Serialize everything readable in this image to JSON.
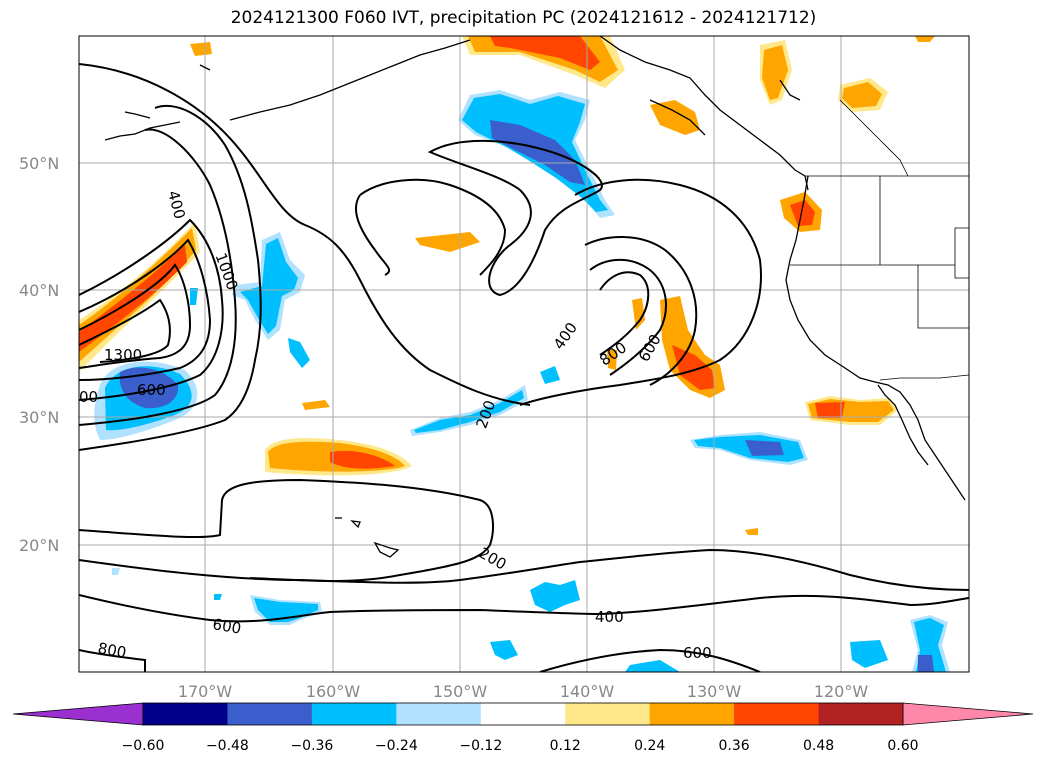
{
  "title": "2024121300 F060 IVT, precipitation PC (2024121612 - 2024121712)",
  "lat_labels": [
    "50°N",
    "40°N",
    "30°N",
    "20°N"
  ],
  "lon_labels": [
    "170°W",
    "160°W",
    "150°W",
    "140°W",
    "130°W",
    "120°W"
  ],
  "colorbar": {
    "colors": [
      "#9b30d0",
      "#00008b",
      "#3a5fcd",
      "#00bfff",
      "#b0e2ff",
      "#ffffff",
      "#ffe88a",
      "#ffa500",
      "#ff4500",
      "#b22222",
      "#ff88aa"
    ],
    "tick_labels": [
      "−0.60",
      "−0.48",
      "−0.36",
      "−0.24",
      "−0.12",
      "0.12",
      "0.24",
      "0.36",
      "0.48",
      "0.60"
    ]
  },
  "contour_labels": {
    "c400_nw": "400",
    "c1000": "1000",
    "c1300": "1300",
    "c600_w": "600",
    "c00_w": "00",
    "c400_mid": "400",
    "c800_mid": "800",
    "c600_mid": "600",
    "c200_mid": "200",
    "c200_s": "200",
    "c400_s": "400",
    "c600_sw": "600",
    "c800_sw": "800",
    "c600_se": "600"
  }
}
